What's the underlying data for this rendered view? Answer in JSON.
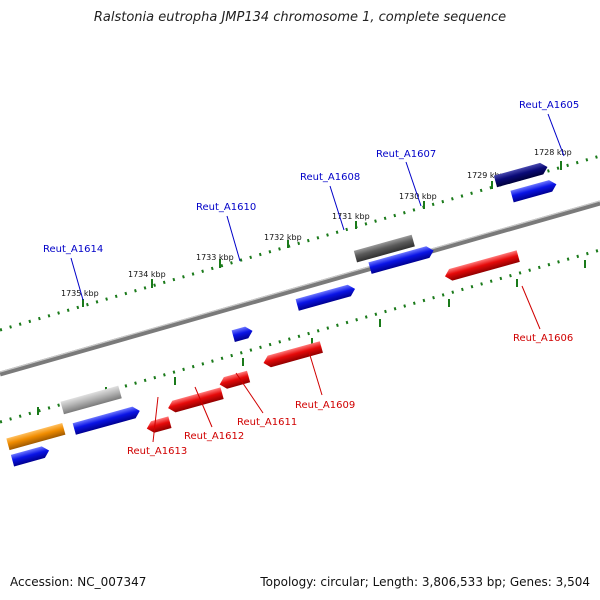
{
  "title": "Ralstonia eutropha JMP134 chromosome 1, complete sequence",
  "footer": {
    "accession": "Accession: NC_007347",
    "summary": "Topology: circular; Length: 3,806,533 bp; Genes: 3,504"
  },
  "ruler_labels": [
    "1735 kbp",
    "1734 kbp",
    "1733 kbp",
    "1732 kbp",
    "1731 kbp",
    "1730 kbp",
    "1729 kbp",
    "1728 kbp"
  ],
  "forward_gene_labels": [
    "Reut_A1614",
    "Reut_A1610",
    "Reut_A1608",
    "Reut_A1607",
    "Reut_A1605"
  ],
  "reverse_gene_labels": [
    "Reut_A1613",
    "Reut_A1612",
    "Reut_A1611",
    "Reut_A1609",
    "Reut_A1606"
  ],
  "colors": {
    "forward_label": "#0000c8",
    "reverse_label": "#d00000",
    "ruler": "#1a7a1a",
    "backbone": "#808080",
    "gene_blue": "#0a14e6",
    "gene_red": "#e60a0a",
    "gene_orange": "#f08c00",
    "gene_gray_light": "#b4b4b4",
    "gene_gray_dark": "#5a5a5a",
    "gene_navy": "#0a0a78"
  }
}
